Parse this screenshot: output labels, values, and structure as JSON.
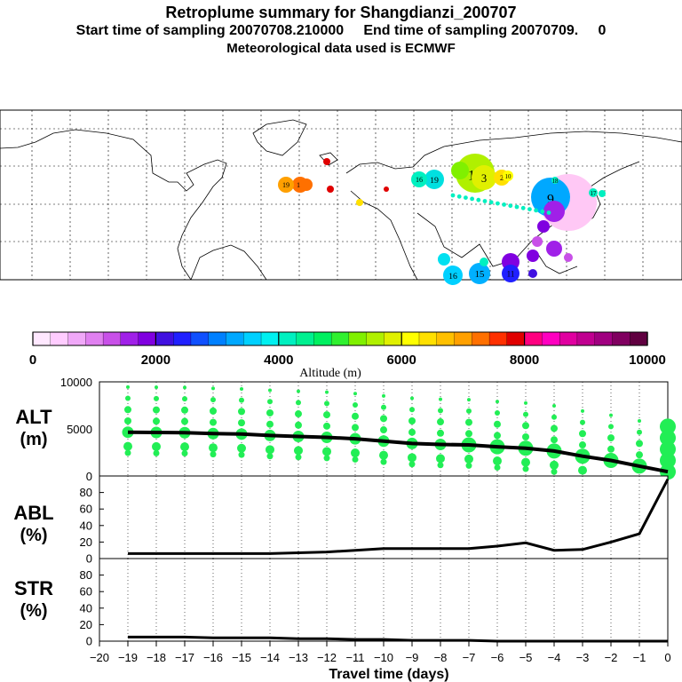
{
  "header": {
    "title": "Retroplume summary for Shangdianzi_200707",
    "sampling_line": "Start time of sampling 20070708.210000     End time of sampling 20070709.     0",
    "met_line": "Meteorological data used is ECMWF"
  },
  "colorbar": {
    "label": "Altitude (m)",
    "ticks": [
      "0",
      "2000",
      "4000",
      "6000",
      "8000",
      "10000"
    ],
    "colors": [
      "#ffe8ff",
      "#ffccff",
      "#f0a8f8",
      "#e080f0",
      "#c850e8",
      "#a020e8",
      "#8000e0",
      "#4010e0",
      "#2020ff",
      "#1050ff",
      "#0080ff",
      "#00a8ff",
      "#00d0ff",
      "#00f0f0",
      "#00f0c0",
      "#00f090",
      "#00f060",
      "#30f030",
      "#80f000",
      "#b0f000",
      "#e0f000",
      "#ffff00",
      "#ffe000",
      "#ffc000",
      "#ffa000",
      "#ff7000",
      "#ff3000",
      "#e00000",
      "#ff0080",
      "#ff00c0",
      "#e000a0",
      "#c00090",
      "#a00080",
      "#800060",
      "#600040"
    ]
  },
  "map": {
    "plume_labels": [
      "19",
      "18",
      "17",
      "16",
      "19",
      "14",
      "3",
      "2",
      "10",
      "18",
      "17",
      "15",
      "9",
      "8",
      "5",
      "13",
      "16",
      "15",
      "14",
      "12",
      "11"
    ]
  },
  "panels": {
    "alt": {
      "label_line1": "ALT",
      "label_line2": "(m)",
      "ticks": [
        "10000",
        "5000",
        "0"
      ]
    },
    "abl": {
      "label_line1": "ABL",
      "label_line2": "(%)",
      "ticks": [
        "80",
        "60",
        "40",
        "20",
        "0"
      ]
    },
    "str": {
      "label_line1": "STR",
      "label_line2": "(%)",
      "ticks": [
        "80",
        "60",
        "40",
        "20",
        "0"
      ]
    }
  },
  "xaxis": {
    "label": "Travel time (days)",
    "ticks": [
      "−20",
      "−19",
      "−18",
      "−17",
      "−16",
      "−15",
      "−14",
      "−13",
      "−12",
      "−11",
      "−10",
      "−9",
      "−8",
      "−7",
      "−6",
      "−5",
      "−4",
      "−3",
      "−2",
      "−1",
      "0"
    ]
  },
  "chart_data": [
    {
      "type": "line",
      "title": "ALT",
      "ylabel": "ALT (m)",
      "xlabel": "Travel time (days)",
      "ylim": [
        0,
        10000
      ],
      "xlim": [
        -20,
        0
      ],
      "x": [
        -19,
        -18,
        -17,
        -16,
        -15,
        -14,
        -13,
        -12,
        -11,
        -10,
        -9,
        -8,
        -7,
        -6,
        -5,
        -4,
        -3,
        -2,
        -1,
        0
      ],
      "values": [
        4650,
        4620,
        4600,
        4500,
        4450,
        4300,
        4200,
        4100,
        3950,
        3700,
        3450,
        3350,
        3300,
        3100,
        2950,
        2650,
        2100,
        1650,
        1050,
        450
      ],
      "cluster_color": "#22ee55"
    },
    {
      "type": "line",
      "title": "ABL",
      "ylabel": "ABL (%)",
      "xlabel": "Travel time (days)",
      "ylim": [
        0,
        100
      ],
      "xlim": [
        -20,
        0
      ],
      "x": [
        -19,
        -18,
        -17,
        -16,
        -15,
        -14,
        -13,
        -12,
        -11,
        -10,
        -9,
        -8,
        -7,
        -6,
        -5,
        -4,
        -3,
        -2,
        -1,
        0
      ],
      "values": [
        6,
        6,
        6,
        6,
        6,
        6,
        7,
        8,
        10,
        12,
        12,
        12,
        12,
        15,
        19,
        10,
        11,
        20,
        30,
        96
      ]
    },
    {
      "type": "line",
      "title": "STR",
      "ylabel": "STR (%)",
      "xlabel": "Travel time (days)",
      "ylim": [
        0,
        100
      ],
      "xlim": [
        -20,
        0
      ],
      "x": [
        -19,
        -18,
        -17,
        -16,
        -15,
        -14,
        -13,
        -12,
        -11,
        -10,
        -9,
        -8,
        -7,
        -6,
        -5,
        -4,
        -3,
        -2,
        -1,
        0
      ],
      "values": [
        5,
        5,
        5,
        4,
        4,
        4,
        3,
        3,
        2,
        2,
        1,
        1,
        1,
        0,
        0,
        0,
        0,
        0,
        0,
        0
      ]
    }
  ]
}
